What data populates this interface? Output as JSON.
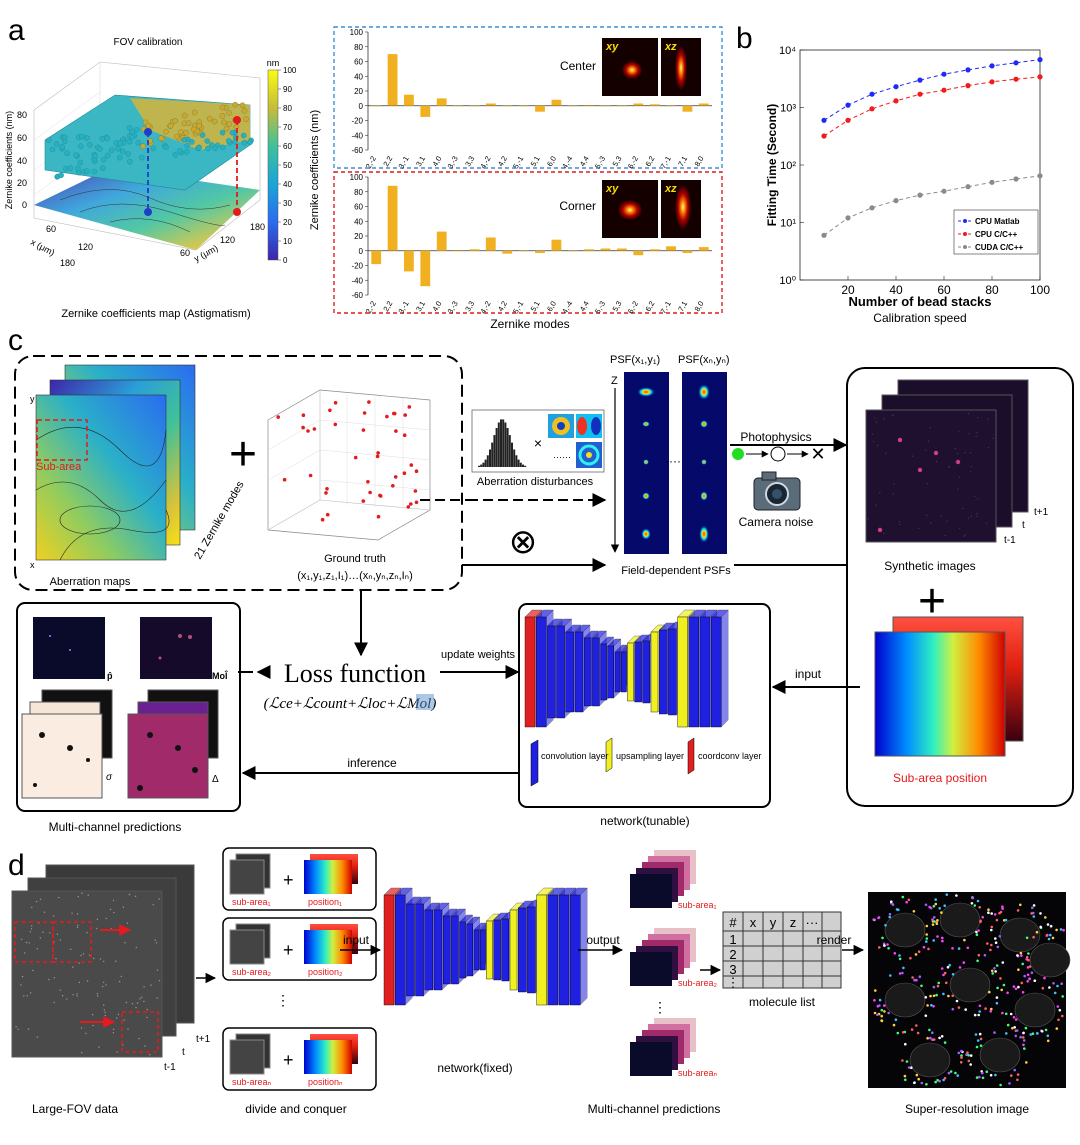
{
  "panel_a": {
    "letter": "a",
    "surface_title": "FOV calibration",
    "colorbar_unit": "nm",
    "colorbar_ticks": [
      "100",
      "90",
      "80",
      "70",
      "60",
      "50",
      "40",
      "30",
      "20",
      "10",
      "0"
    ],
    "z_axis_label": "Zernike coefficients (nm)",
    "z_ticks": [
      "80",
      "60",
      "40",
      "20",
      "0"
    ],
    "x_axis_label": "x (μm)",
    "x_ticks": [
      "60",
      "120",
      "180"
    ],
    "y_axis_label": "y (μm)",
    "y_ticks": [
      "60",
      "120",
      "180"
    ],
    "caption": "Zernike coefficients map (Astigmatism)",
    "bar_ylabel": "Zernike coefficients (nm)",
    "bar_xlabel": "Zernike modes",
    "inset_xy": "xy",
    "inset_xz": "xz",
    "center_label": "Center",
    "corner_label": "Corner"
  },
  "chart_data": [
    {
      "type": "bar",
      "title": "Center",
      "xlabel": "Zernike modes",
      "ylabel": "Zernike coefficients (nm)",
      "ylim": [
        -60,
        100
      ],
      "yticks": [
        -60,
        -40,
        -20,
        0,
        20,
        40,
        60,
        80,
        100
      ],
      "categories": [
        "2,-2",
        "2,2",
        "3,-1",
        "3,1",
        "4,0",
        "3,-3",
        "3,3",
        "4,-2",
        "4,2",
        "5,-1",
        "5,1",
        "6,0",
        "4,-4",
        "4,4",
        "5,-3",
        "5,3",
        "6,-2",
        "6,2",
        "7,-1",
        "7,1",
        "8,0"
      ],
      "values": [
        0,
        70,
        15,
        -15,
        10,
        0,
        0,
        3,
        0,
        0,
        -8,
        8,
        0,
        1,
        0,
        0,
        3,
        2,
        0,
        -8,
        3
      ]
    },
    {
      "type": "bar",
      "title": "Corner",
      "xlabel": "Zernike modes",
      "ylabel": "Zernike coefficients (nm)",
      "ylim": [
        -60,
        100
      ],
      "yticks": [
        -60,
        -40,
        -20,
        0,
        20,
        40,
        60,
        80,
        100
      ],
      "categories": [
        "2,-2",
        "2,2",
        "3,-1",
        "3,1",
        "4,0",
        "3,-3",
        "3,3",
        "4,-2",
        "4,2",
        "5,-1",
        "5,1",
        "6,0",
        "4,-4",
        "4,4",
        "5,-3",
        "5,3",
        "6,-2",
        "6,2",
        "7,-1",
        "7,1",
        "8,0"
      ],
      "values": [
        -18,
        88,
        -28,
        -48,
        26,
        1,
        2,
        18,
        -4,
        0,
        -3,
        15,
        0,
        2,
        3,
        3,
        -6,
        2,
        6,
        -3,
        5
      ]
    },
    {
      "type": "line",
      "title": "Calibration speed",
      "xlabel": "Number of bead stacks",
      "ylabel": "Fitting Time (Second)",
      "yscale": "log",
      "xlim": [
        0,
        100
      ],
      "ylim": [
        1,
        10000
      ],
      "xticks": [
        20,
        40,
        60,
        80,
        100
      ],
      "ytick_labels": [
        "10⁰",
        "10¹",
        "10²",
        "10³",
        "10⁴"
      ],
      "x": [
        10,
        20,
        30,
        40,
        50,
        60,
        70,
        80,
        90,
        100
      ],
      "series": [
        {
          "name": "CPU Matlab",
          "color": "#1f2bf5",
          "values": [
            600,
            1100,
            1700,
            2300,
            3000,
            3800,
            4500,
            5300,
            6000,
            6800
          ]
        },
        {
          "name": "CPU C/C++",
          "color": "#f01b1b",
          "values": [
            320,
            600,
            950,
            1300,
            1700,
            2000,
            2400,
            2800,
            3100,
            3400
          ]
        },
        {
          "name": "CUDA C/C++",
          "color": "#8a8a8a",
          "values": [
            6,
            12,
            18,
            24,
            30,
            35,
            42,
            50,
            57,
            65
          ]
        }
      ]
    }
  ],
  "panel_b": {
    "letter": "b",
    "caption": "Calibration speed"
  },
  "panel_c": {
    "letter": "c",
    "aberration_maps": "Aberration maps",
    "sub_area": "Sub-area",
    "zernike_modes": "21 Zernike modes",
    "axis_y": "y",
    "axis_x": "x",
    "axis_z": "Z",
    "ground_truth": "Ground truth",
    "ground_truth_formula": "(x₁,y₁,z₁,I₁)…(xₙ,yₙ,zₙ,Iₙ)",
    "aberration_disturbances": "Aberration disturbances",
    "psf_1": "PSF(x₁,y₁)",
    "psf_n": "PSF(xₙ,yₙ)",
    "field_psfs": "Field-dependent PSFs",
    "photophysics": "Photophysics",
    "camera_noise": "Camera noise",
    "synthetic_images": "Synthetic images",
    "frame_next": "t+1",
    "frame_now": "t",
    "frame_prev": "t-1",
    "sub_area_position": "Sub-area position",
    "loss_title": "Loss function",
    "loss_formula": "(ℒce+ℒcount+ℒloc+ℒMol)",
    "update_weights": "update weights",
    "input": "input",
    "inference": "inference",
    "network_tunable": "network(tunable)",
    "legend_conv": "convolution layer",
    "legend_up": "upsampling layer",
    "legend_coord": "coordconv layer",
    "multi_channel": "Multi-channel predictions",
    "sym_p": "p̂",
    "sym_mol": "Mol̂",
    "sym_sigma": "σ",
    "sym_delta": "Δ"
  },
  "panel_d": {
    "letter": "d",
    "large_fov": "Large-FOV data",
    "divide": "divide and conquer",
    "sub_area_1": "sub-area₁",
    "sub_area_2": "sub-area₂",
    "sub_area_n": "sub-areaₙ",
    "position_1": "position₁",
    "position_2": "position₂",
    "position_n": "positionₙ",
    "input": "input",
    "output": "output",
    "network_fixed": "network(fixed)",
    "multi_channel": "Multi-channel predictions",
    "molecule_list": "molecule list",
    "table_header": [
      "#",
      "x",
      "y",
      "z",
      "···"
    ],
    "table_rows": [
      "1",
      "2",
      "3",
      "⋮"
    ],
    "render": "render",
    "super_res": "Super-resolution image",
    "frame_next": "t+1",
    "frame_now": "t",
    "frame_prev": "t-1"
  }
}
